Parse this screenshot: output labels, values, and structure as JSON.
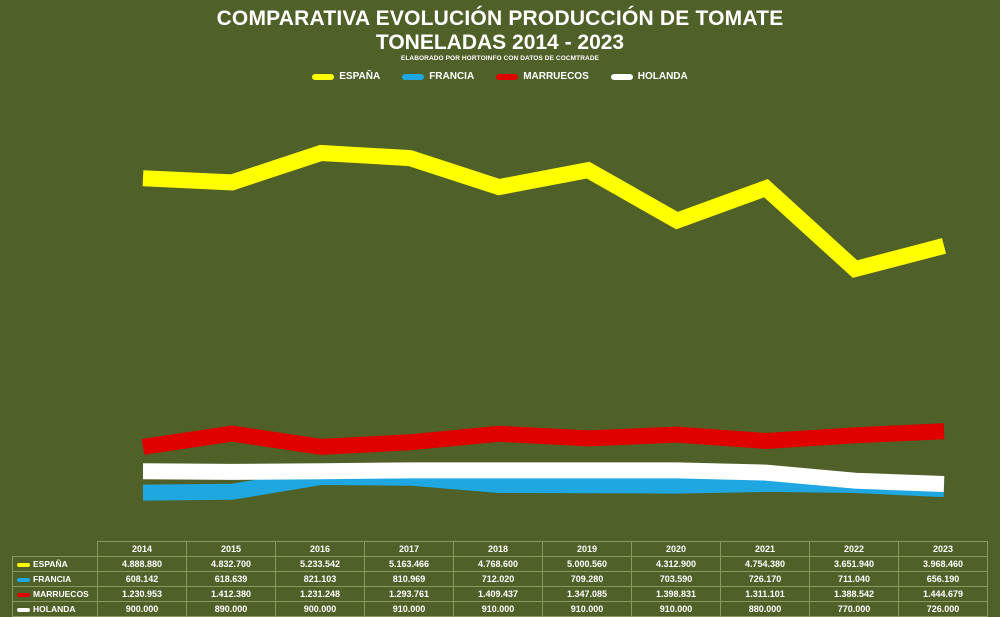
{
  "title_line1": "COMPARATIVA EVOLUCIÓN PRODUCCIÓN DE TOMATE",
  "title_line2": "TONELADAS 2014 - 2023",
  "subtitle": "ELABORADO POR HORTOINFO CON DATOS DE  COCMTRADE",
  "colors": {
    "background": "#4f6128",
    "espana": "#ffff00",
    "francia": "#1ea7e0",
    "marruecos": "#e00000",
    "holanda": "#ffffff"
  },
  "chart_data": {
    "type": "line",
    "title": "COMPARATIVA EVOLUCIÓN PRODUCCIÓN DE TOMATE TONELADAS 2014 - 2023",
    "categories": [
      "2014",
      "2015",
      "2016",
      "2017",
      "2018",
      "2019",
      "2020",
      "2021",
      "2022",
      "2023"
    ],
    "ylim": [
      0,
      5500000
    ],
    "grid": false,
    "legend": "top-center",
    "series": [
      {
        "name": "ESPAÑA",
        "color": "#ffff00",
        "values": [
          4888880,
          4832700,
          5233542,
          5163466,
          4768600,
          5000560,
          4312900,
          4754380,
          3651940,
          3968460
        ],
        "labels": [
          "4.888.880",
          "4.832.700",
          "5.233.542",
          "5.163.466",
          "4.768.600",
          "5.000.560",
          "4.312.900",
          "4.754.380",
          "3.651.940",
          "3.968.460"
        ]
      },
      {
        "name": "FRANCIA",
        "color": "#1ea7e0",
        "values": [
          608142,
          618639,
          821103,
          810969,
          712020,
          709280,
          703590,
          726170,
          711040,
          656190
        ],
        "labels": [
          "608.142",
          "618.639",
          "821.103",
          "810.969",
          "712.020",
          "709.280",
          "703.590",
          "726.170",
          "711.040",
          "656.190"
        ]
      },
      {
        "name": "MARRUECOS",
        "color": "#e00000",
        "values": [
          1230953,
          1412380,
          1231248,
          1293761,
          1409437,
          1347085,
          1398831,
          1311101,
          1388542,
          1444679
        ],
        "labels": [
          "1.230.953",
          "1.412.380",
          "1.231.248",
          "1.293.761",
          "1.409.437",
          "1.347.085",
          "1.398.831",
          "1.311.101",
          "1.388.542",
          "1.444.679"
        ]
      },
      {
        "name": "HOLANDA",
        "color": "#ffffff",
        "values": [
          900000,
          890000,
          900000,
          910000,
          910000,
          910000,
          910000,
          880000,
          770000,
          726000
        ],
        "labels": [
          "900.000",
          "890.000",
          "900.000",
          "910.000",
          "910.000",
          "910.000",
          "910.000",
          "880.000",
          "770.000",
          "726.000"
        ]
      }
    ]
  }
}
